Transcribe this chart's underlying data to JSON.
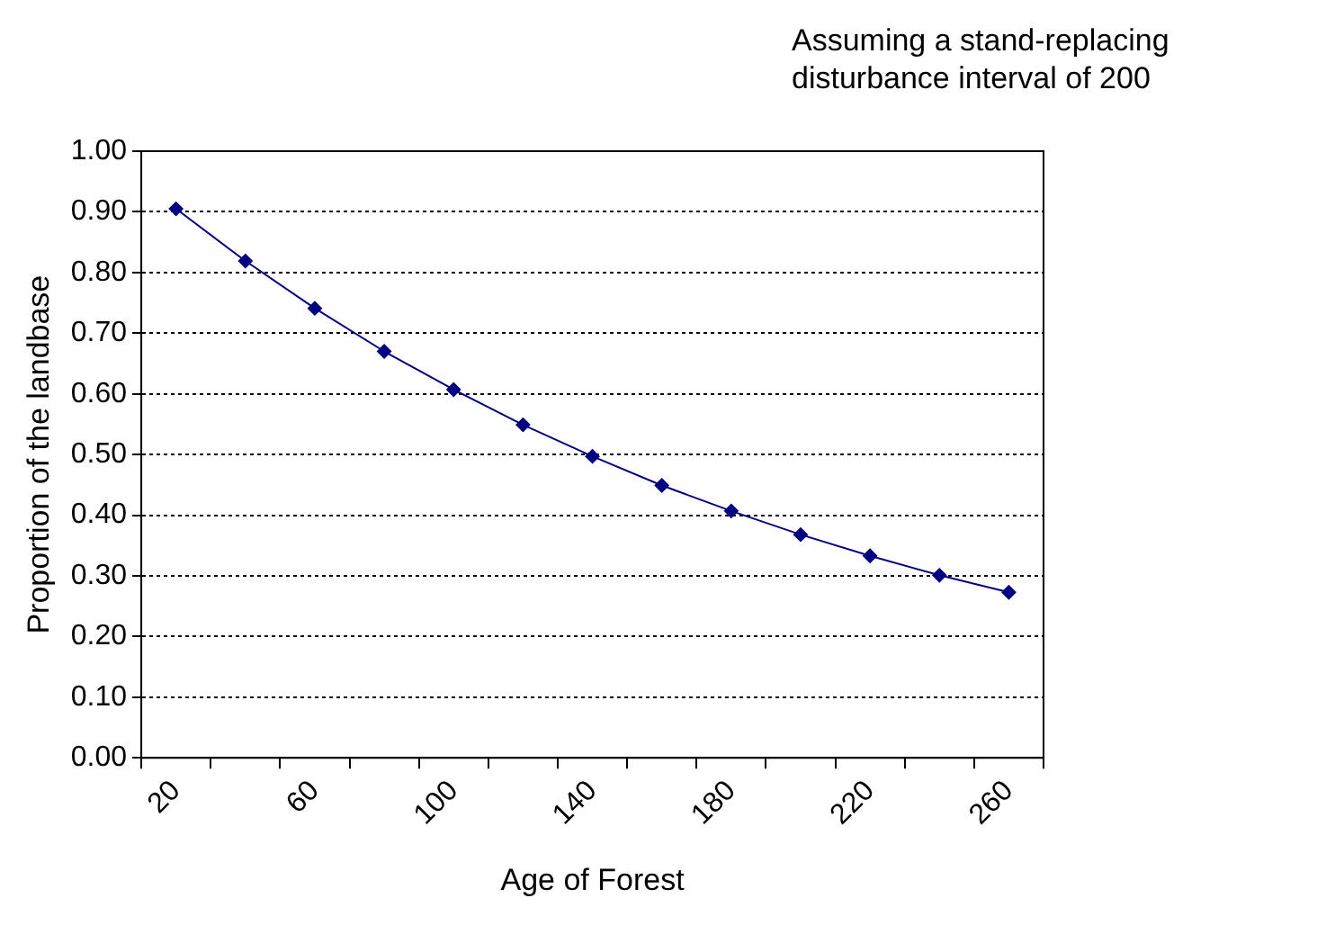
{
  "chart_data": {
    "type": "line",
    "title": "Assuming a stand-replacing disturbance interval of 200",
    "xlabel": "Age of Forest",
    "ylabel": "Proportion of the landbase",
    "categories": [
      "20",
      null,
      "60",
      null,
      "100",
      null,
      "140",
      null,
      "180",
      null,
      "220",
      null,
      "260"
    ],
    "series": [
      {
        "color": "#000080",
        "values": [
          0.905,
          0.819,
          0.741,
          0.67,
          0.607,
          0.549,
          0.497,
          0.449,
          0.407,
          0.368,
          0.333,
          0.301,
          0.273
        ]
      }
    ],
    "ylim": [
      0,
      1
    ],
    "yticks": [
      {
        "value": 0,
        "label": "0.00"
      },
      {
        "value": 0.1,
        "label": "0.10"
      },
      {
        "value": 0.2,
        "label": "0.20"
      },
      {
        "value": 0.3,
        "label": "0.30"
      },
      {
        "value": 0.4,
        "label": "0.40"
      },
      {
        "value": 0.5,
        "label": "0.50"
      },
      {
        "value": 0.6,
        "label": "0.60"
      },
      {
        "value": 0.7,
        "label": "0.70"
      },
      {
        "value": 0.8,
        "label": "0.80"
      },
      {
        "value": 0.9,
        "label": "0.90"
      },
      {
        "value": 1,
        "label": "1.00"
      }
    ],
    "grid": "y",
    "legend": false,
    "marker": "diamond",
    "line_style": "solid"
  }
}
